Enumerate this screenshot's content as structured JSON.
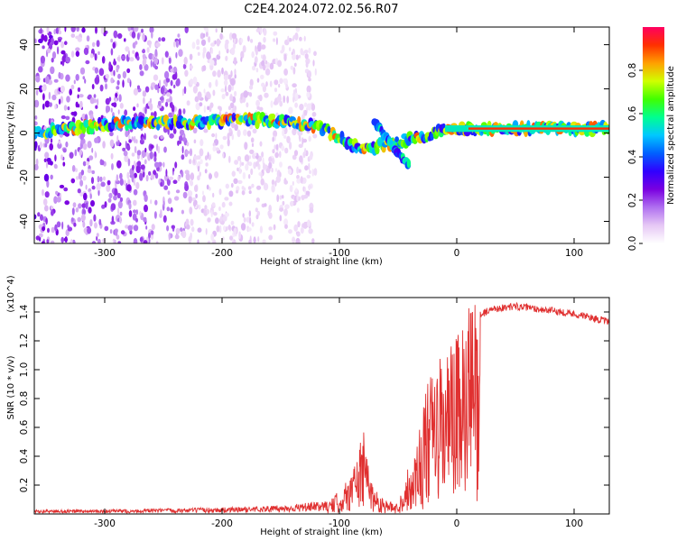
{
  "title": "C2E4.2024.072.02.56.R07",
  "chart_data": [
    {
      "type": "heatmap",
      "panel": "spectrogram",
      "title": "C2E4.2024.072.02.56.R07",
      "xlabel": "Height of straight line (km)",
      "ylabel": "Frequency (Hz)",
      "xlim": [
        -360,
        130
      ],
      "ylim": [
        -50,
        48
      ],
      "xticks": [
        -300,
        -200,
        -100,
        0,
        100
      ],
      "yticks": [
        -40,
        -20,
        0,
        20,
        40
      ],
      "colorbar": {
        "label": "Normalized spectral amplitude",
        "range": [
          0,
          1
        ],
        "ticks": [
          0.0,
          0.2,
          0.4,
          0.6,
          0.8
        ],
        "tick_labels": [
          "0.0",
          "0.2",
          "0.4",
          "0.6",
          "0.8"
        ],
        "colormap": [
          "#ffffff",
          "#e6c8f5",
          "#b070f0",
          "#7a00e0",
          "#3000ff",
          "#0060ff",
          "#00c8ff",
          "#00ff90",
          "#40ff00",
          "#d0ff00",
          "#ffa000",
          "#ff3000",
          "#ff0060"
        ]
      },
      "features": [
        {
          "name": "noise-region",
          "x_range": [
            -360,
            -120
          ],
          "freq_range": [
            -50,
            48
          ],
          "amplitude": 0.1
        },
        {
          "name": "signal-trace",
          "points": [
            [
              -360,
              0
            ],
            [
              -300,
              4
            ],
            [
              -220,
              5
            ],
            [
              -160,
              6
            ],
            [
              -120,
              3
            ],
            [
              -100,
              -2
            ],
            [
              -80,
              -8
            ],
            [
              -60,
              -5
            ],
            [
              -40,
              -3
            ],
            [
              -20,
              0
            ],
            [
              0,
              2
            ],
            [
              50,
              2
            ],
            [
              130,
              2
            ]
          ],
          "amplitude_peak": 0.9
        },
        {
          "name": "branch-trace",
          "points": [
            [
              -70,
              5
            ],
            [
              -55,
              -6
            ],
            [
              -40,
              -15
            ]
          ],
          "amplitude_peak": 0.6
        }
      ]
    },
    {
      "type": "line",
      "panel": "snr",
      "xlabel": "Height of straight line (km)",
      "ylabel": "SNR (10 * v/v)",
      "y_scale_label": "(x10^4)",
      "xlim": [
        -360,
        130
      ],
      "ylim": [
        0,
        1.5
      ],
      "xticks": [
        -300,
        -200,
        -100,
        0,
        100
      ],
      "yticks": [
        0.2,
        0.4,
        0.6,
        0.8,
        1.0,
        1.2,
        1.4
      ],
      "ytick_labels": [
        "0.2",
        "0.4",
        "0.6",
        "0.8",
        "1.0",
        "1.2",
        "1.4"
      ],
      "color": "#e03030",
      "series": [
        {
          "name": "SNR",
          "x": [
            -360,
            -300,
            -200,
            -150,
            -110,
            -95,
            -85,
            -80,
            -75,
            -70,
            -60,
            -50,
            -45,
            -40,
            -35,
            -30,
            -25,
            -20,
            -15,
            -10,
            -5,
            0,
            5,
            10,
            15,
            20,
            30,
            50,
            70,
            90,
            110,
            130
          ],
          "y": [
            0.02,
            0.02,
            0.03,
            0.04,
            0.06,
            0.18,
            0.35,
            0.5,
            0.3,
            0.15,
            0.08,
            0.06,
            0.2,
            0.3,
            0.4,
            0.6,
            0.75,
            0.85,
            0.9,
            0.95,
            1.0,
            1.05,
            1.1,
            1.2,
            1.3,
            1.38,
            1.42,
            1.44,
            1.42,
            1.4,
            1.37,
            1.33
          ]
        }
      ]
    }
  ]
}
